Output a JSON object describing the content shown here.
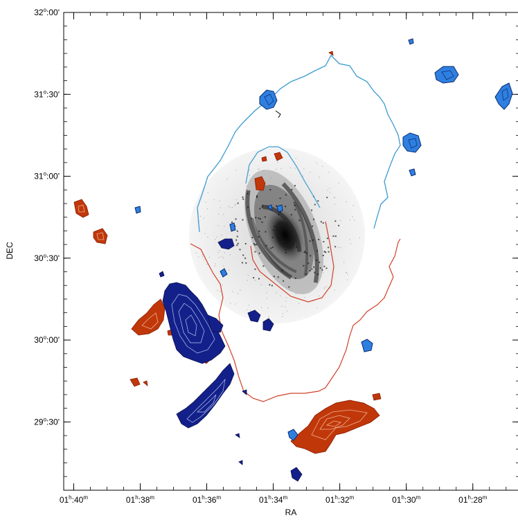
{
  "chart_data": {
    "type": "contour-map",
    "xlabel": "RA",
    "ylabel": "DEC",
    "x_ticks": [
      {
        "h": "01",
        "m": "40"
      },
      {
        "h": "01",
        "m": "38"
      },
      {
        "h": "01",
        "m": "36"
      },
      {
        "h": "01",
        "m": "34"
      },
      {
        "h": "01",
        "m": "32"
      },
      {
        "h": "01",
        "m": "30"
      },
      {
        "h": "01",
        "m": "28"
      }
    ],
    "y_ticks": [
      {
        "d": "32",
        "m": "00"
      },
      {
        "d": "31",
        "m": "30"
      },
      {
        "d": "31",
        "m": "00"
      },
      {
        "d": "30",
        "m": "30"
      },
      {
        "d": "30",
        "m": "00"
      },
      {
        "d": "29",
        "m": "30"
      }
    ],
    "xlim_minutes_ra": [
      100.3,
      86.6
    ],
    "ylim_deg_dec": [
      29.083,
      32.0
    ],
    "grid": false,
    "colors": {
      "redshifted": "#c0380a",
      "blueshifted_dark": "#14208a",
      "blueshifted_light": "#2e7fe0",
      "outer_contour_blue": "#3a9ad0",
      "outer_contour_red": "#d04028",
      "galaxy_gray": "#1a1a1a"
    }
  }
}
